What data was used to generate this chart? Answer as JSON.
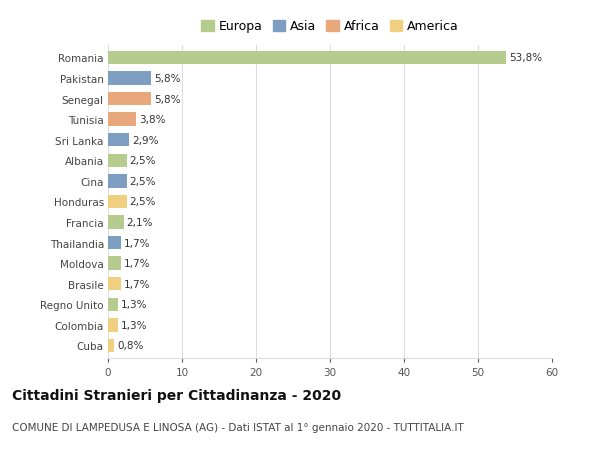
{
  "countries": [
    "Romania",
    "Pakistan",
    "Senegal",
    "Tunisia",
    "Sri Lanka",
    "Albania",
    "Cina",
    "Honduras",
    "Francia",
    "Thailandia",
    "Moldova",
    "Brasile",
    "Regno Unito",
    "Colombia",
    "Cuba"
  ],
  "values": [
    53.8,
    5.8,
    5.8,
    3.8,
    2.9,
    2.5,
    2.5,
    2.5,
    2.1,
    1.7,
    1.7,
    1.7,
    1.3,
    1.3,
    0.8
  ],
  "labels": [
    "53,8%",
    "5,8%",
    "5,8%",
    "3,8%",
    "2,9%",
    "2,5%",
    "2,5%",
    "2,5%",
    "2,1%",
    "1,7%",
    "1,7%",
    "1,7%",
    "1,3%",
    "1,3%",
    "0,8%"
  ],
  "continents": [
    "Europa",
    "Asia",
    "Africa",
    "Africa",
    "Asia",
    "Europa",
    "Asia",
    "America",
    "Europa",
    "Asia",
    "Europa",
    "America",
    "Europa",
    "America",
    "America"
  ],
  "continent_colors": {
    "Europa": "#b5cc8e",
    "Asia": "#7d9ec0",
    "Africa": "#e8a87c",
    "America": "#f0d080"
  },
  "legend_order": [
    "Europa",
    "Asia",
    "Africa",
    "America"
  ],
  "title": "Cittadini Stranieri per Cittadinanza - 2020",
  "subtitle": "COMUNE DI LAMPEDUSA E LINOSA (AG) - Dati ISTAT al 1° gennaio 2020 - TUTTITALIA.IT",
  "xlim": [
    0,
    60
  ],
  "xticks": [
    0,
    10,
    20,
    30,
    40,
    50,
    60
  ],
  "background_color": "#ffffff",
  "grid_color": "#dddddd",
  "bar_height": 0.65,
  "title_fontsize": 10,
  "subtitle_fontsize": 7.5,
  "label_fontsize": 7.5,
  "tick_fontsize": 7.5,
  "legend_fontsize": 9
}
